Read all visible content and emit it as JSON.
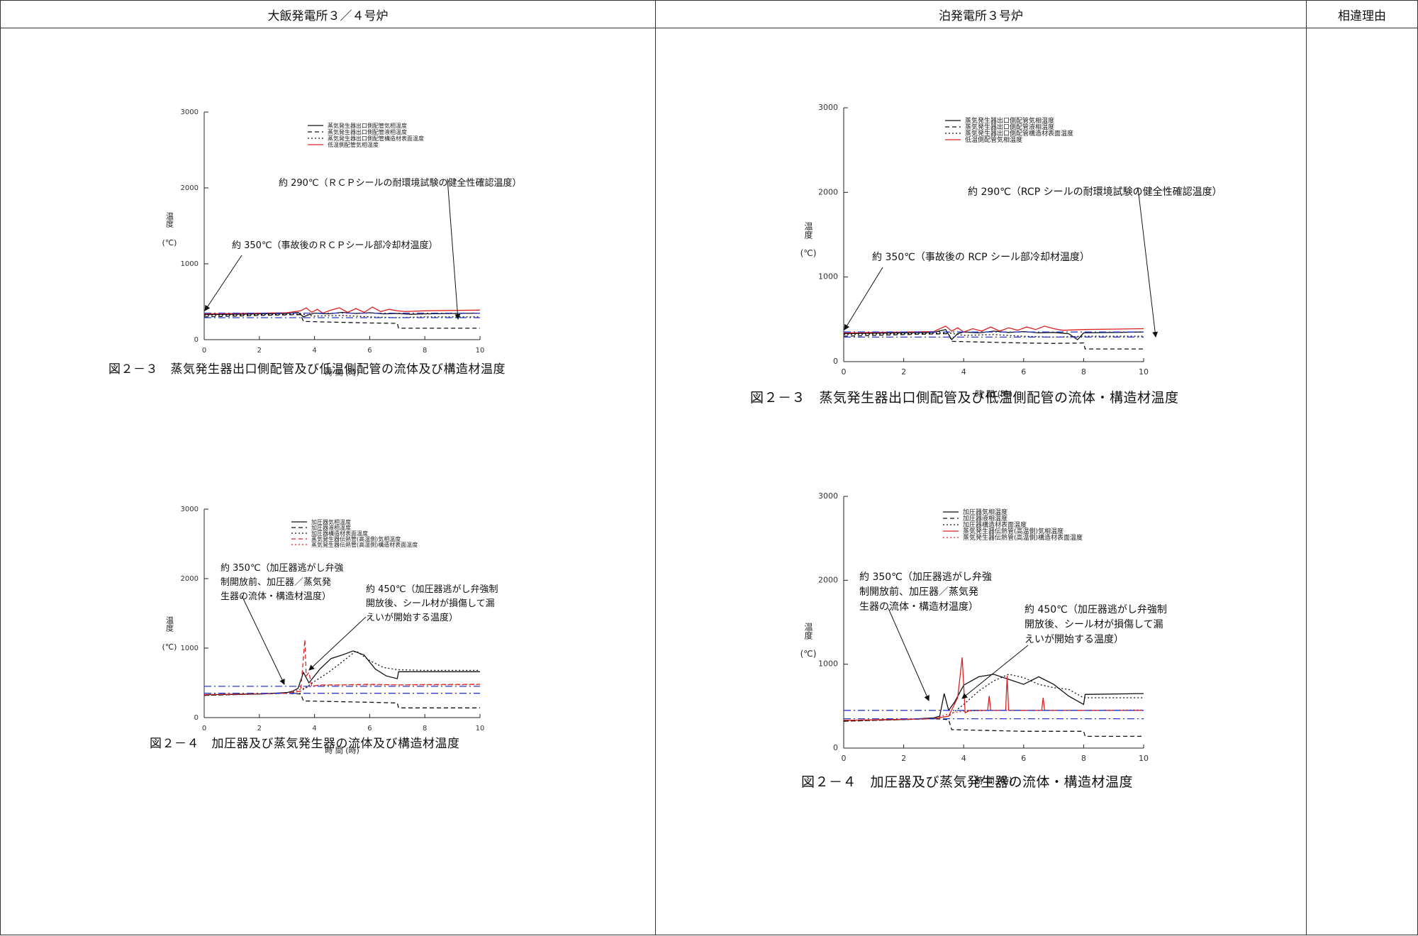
{
  "headers": {
    "left": "大飯発電所３／４号炉",
    "right": "泊発電所３号炉",
    "reason": "相違理由"
  },
  "figures": {
    "left_fig3": {
      "caption": "図２－３　蒸気発生器出口側配管及び低温側配管の流体及び構造材温度",
      "xlabel": "時 間 (時)",
      "ylabel": "温度",
      "yunit": "(℃)",
      "legend": [
        "蒸気発生器出口側配管気相温度",
        "蒸気発生器出口側配管液相温度",
        "蒸気発生器出口側配管構造材表面温度",
        "低温側配管気相温度"
      ],
      "ann1": "約 290℃（ＲＣＰシールの耐環境試験の健全性確認温度）",
      "ann2": "約 350℃（事故後のＲＣＰシール部冷却材温度）"
    },
    "left_fig4": {
      "caption": "図２－４　加圧器及び蒸気発生器の流体及び構造材温度",
      "xlabel": "時 間 (時)",
      "ylabel": "温度",
      "yunit": "(℃)",
      "legend": [
        "加圧器気相温度",
        "加圧器液相温度",
        "加圧器構造材表面温度",
        "蒸気発生器伝熱管(高温側)気相温度",
        "蒸気発生器伝熱管(高温側)構造材表面温度"
      ],
      "ann1": [
        "約 350℃（加圧器逃がし弁強",
        "制開放前、加圧器／蒸気発",
        "生器の流体・構造材温度）"
      ],
      "ann2": [
        "約 450℃（加圧器逃がし弁強制",
        "開放後、シール材が損傷して漏",
        "えいが開始する温度）"
      ]
    },
    "right_fig3": {
      "caption": "図２－３　蒸気発生器出口側配管及び低温側配管の流体・構造材温度",
      "xlabel": "時 間 (時)",
      "ylabel": "温度",
      "yunit": "(℃)",
      "legend": [
        "蒸気発生器出口側配管気相温度",
        "蒸気発生器出口側配管液相温度",
        "蒸気発生器出口側配管構造材表面温度",
        "低温側配管気相温度"
      ],
      "ann1": "約 290℃（RCP シールの耐環境試験の健全性確認温度）",
      "ann2": "約 350℃（事故後の RCP シール部冷却材温度）"
    },
    "right_fig4": {
      "caption": "図２－４　加圧器及び蒸気発生器の流体・構造材温度",
      "xlabel": "時 間 (時)",
      "ylabel": "温度",
      "yunit": "(℃)",
      "legend": [
        "加圧器気相温度",
        "加圧器液相温度",
        "加圧器構造材表面温度",
        "蒸気発生器伝熱管(高温側)気相温度",
        "蒸気発生器伝熱管(高温側)構造材表面温度"
      ],
      "ann1": [
        "約 350℃（加圧器逃がし弁強",
        "制開放前、加圧器／蒸気発",
        "生器の流体・構造材温度）"
      ],
      "ann2": [
        "約 450℃（加圧器逃がし弁強制",
        "開放後、シール材が損傷して漏",
        "えいが開始する温度）"
      ]
    }
  },
  "chart_data": [
    {
      "id": "left_fig3",
      "type": "line",
      "xlim": [
        0,
        10
      ],
      "ylim": [
        0,
        3000
      ],
      "xticks": [
        0,
        2,
        4,
        6,
        8,
        10
      ],
      "yticks": [
        0,
        1000,
        2000,
        3000
      ],
      "series": [
        {
          "name": "蒸気発生器出口側配管気相温度",
          "style": "solid",
          "color": "#111111",
          "x": [
            0,
            1,
            2,
            3,
            3.4,
            3.6,
            3.8,
            4,
            4.5,
            5,
            5.5,
            6,
            6.5,
            7,
            7.5,
            8,
            9,
            10
          ],
          "y": [
            330,
            335,
            340,
            345,
            360,
            300,
            330,
            350,
            340,
            360,
            345,
            355,
            340,
            345,
            335,
            340,
            345,
            350
          ]
        },
        {
          "name": "蒸気発生器出口側配管液相温度",
          "style": "dashed",
          "color": "#111111",
          "x": [
            0,
            2,
            3.5,
            3.6,
            6,
            7,
            7.05,
            10
          ],
          "y": [
            300,
            320,
            330,
            240,
            220,
            215,
            150,
            150
          ]
        },
        {
          "name": "蒸気発生器出口側配管構造材表面温度",
          "style": "dotted",
          "color": "#111111",
          "x": [
            0,
            2,
            3.5,
            4,
            5,
            6,
            7,
            8,
            10
          ],
          "y": [
            320,
            330,
            340,
            310,
            320,
            300,
            290,
            300,
            300
          ]
        },
        {
          "name": "低温側配管気相温度",
          "style": "solid",
          "color": "#e02020",
          "x": [
            0,
            1,
            2,
            3,
            3.5,
            3.7,
            3.9,
            4.1,
            4.3,
            4.6,
            4.9,
            5.2,
            5.5,
            5.8,
            6.1,
            6.4,
            6.7,
            7,
            7.3,
            8,
            9,
            10
          ],
          "y": [
            340,
            345,
            350,
            355,
            380,
            420,
            360,
            400,
            350,
            390,
            420,
            360,
            410,
            360,
            430,
            370,
            400,
            380,
            370,
            380,
            385,
            390
          ]
        },
        {
          "name": "",
          "style": "dashdot",
          "color": "#2a3bd0",
          "x": [
            0,
            10
          ],
          "y": [
            290,
            290
          ]
        },
        {
          "name": "",
          "style": "dashdot",
          "color": "#2a3bd0",
          "x": [
            0,
            10
          ],
          "y": [
            350,
            350
          ]
        }
      ]
    },
    {
      "id": "left_fig4",
      "type": "line",
      "xlim": [
        0,
        10
      ],
      "ylim": [
        0,
        3000
      ],
      "xticks": [
        0,
        2,
        4,
        6,
        8,
        10
      ],
      "yticks": [
        0,
        1000,
        2000,
        3000
      ],
      "series": [
        {
          "name": "加圧器気相温度",
          "style": "solid",
          "color": "#111111",
          "x": [
            0,
            2,
            3,
            3.2,
            3.4,
            3.6,
            3.8,
            4.2,
            4.6,
            5,
            5.4,
            5.8,
            6.2,
            6.6,
            7,
            7.05,
            10
          ],
          "y": [
            330,
            340,
            360,
            380,
            420,
            650,
            500,
            700,
            850,
            900,
            960,
            900,
            700,
            600,
            560,
            660,
            660
          ]
        },
        {
          "name": "加圧器液相温度",
          "style": "dashed",
          "color": "#111111",
          "x": [
            0,
            3,
            3.5,
            3.6,
            6,
            7,
            7.05,
            10
          ],
          "y": [
            320,
            350,
            340,
            240,
            220,
            210,
            140,
            140
          ]
        },
        {
          "name": "加圧器構造材表面温度",
          "style": "dotted",
          "color": "#111111",
          "x": [
            0,
            3,
            3.5,
            4,
            4.5,
            5,
            5.5,
            6,
            6.5,
            7,
            8,
            10
          ],
          "y": [
            320,
            350,
            380,
            520,
            650,
            800,
            960,
            820,
            720,
            690,
            680,
            680
          ]
        },
        {
          "name": "蒸気発生器伝熱管(高温側)気相温度",
          "style": "dashed",
          "color": "#e02020",
          "x": [
            0,
            3,
            3.5,
            3.65,
            3.7,
            3.8,
            3.9,
            4.2,
            5,
            6,
            7,
            8,
            10
          ],
          "y": [
            330,
            350,
            380,
            1120,
            600,
            650,
            450,
            470,
            470,
            480,
            470,
            475,
            480
          ]
        },
        {
          "name": "蒸気発生器伝熱管(高温側)構造材表面温度",
          "style": "dotted",
          "color": "#e02020",
          "x": [
            0,
            3,
            3.6,
            4,
            5,
            6,
            7,
            8,
            10
          ],
          "y": [
            330,
            350,
            420,
            460,
            470,
            470,
            470,
            470,
            475
          ]
        },
        {
          "name": "",
          "style": "dashdot",
          "color": "#2a3bd0",
          "x": [
            0,
            10
          ],
          "y": [
            450,
            450
          ]
        },
        {
          "name": "",
          "style": "dashdot",
          "color": "#2a3bd0",
          "x": [
            0,
            10
          ],
          "y": [
            350,
            350
          ]
        }
      ]
    },
    {
      "id": "right_fig3",
      "type": "line",
      "xlim": [
        0,
        10
      ],
      "ylim": [
        0,
        3000
      ],
      "xticks": [
        0,
        2,
        4,
        6,
        8,
        10
      ],
      "yticks": [
        0,
        1000,
        2000,
        3000
      ],
      "series": [
        {
          "name": "蒸気発生器出口側配管気相温度",
          "style": "solid",
          "color": "#111111",
          "x": [
            0,
            1,
            2,
            3,
            3.4,
            3.6,
            3.8,
            4,
            4.5,
            5,
            5.5,
            6,
            6.5,
            7,
            7.5,
            7.8,
            8,
            9,
            10
          ],
          "y": [
            330,
            335,
            340,
            345,
            380,
            260,
            330,
            350,
            340,
            360,
            345,
            355,
            340,
            345,
            330,
            260,
            340,
            345,
            350
          ]
        },
        {
          "name": "蒸気発生器出口側配管液相温度",
          "style": "dashed",
          "color": "#111111",
          "x": [
            0,
            2,
            3.5,
            3.6,
            6,
            7,
            8,
            8.05,
            10
          ],
          "y": [
            300,
            320,
            330,
            240,
            220,
            215,
            220,
            150,
            150
          ]
        },
        {
          "name": "蒸気発生器出口側配管構造材表面温度",
          "style": "dotted",
          "color": "#111111",
          "x": [
            0,
            2,
            3.5,
            4,
            5,
            6,
            7,
            8,
            10
          ],
          "y": [
            320,
            330,
            340,
            310,
            320,
            300,
            290,
            300,
            300
          ]
        },
        {
          "name": "低温側配管気相温度",
          "style": "solid",
          "color": "#e02020",
          "x": [
            0,
            1,
            2,
            3,
            3.4,
            3.6,
            3.8,
            4,
            4.3,
            4.6,
            4.9,
            5.2,
            5.5,
            5.8,
            6.1,
            6.4,
            6.7,
            7,
            7.3,
            8,
            9,
            10
          ],
          "y": [
            340,
            345,
            350,
            355,
            420,
            360,
            400,
            350,
            390,
            360,
            410,
            360,
            400,
            370,
            410,
            380,
            420,
            390,
            370,
            380,
            385,
            390
          ]
        },
        {
          "name": "",
          "style": "dashdot",
          "color": "#2a3bd0",
          "x": [
            0,
            10
          ],
          "y": [
            290,
            290
          ]
        },
        {
          "name": "",
          "style": "dashdot",
          "color": "#2a3bd0",
          "x": [
            0,
            10
          ],
          "y": [
            350,
            350
          ]
        }
      ]
    },
    {
      "id": "right_fig4",
      "type": "line",
      "xlim": [
        0,
        10
      ],
      "ylim": [
        0,
        3000
      ],
      "xticks": [
        0,
        2,
        4,
        6,
        8,
        10
      ],
      "yticks": [
        0,
        1000,
        2000,
        3000
      ],
      "series": [
        {
          "name": "加圧器気相温度",
          "style": "solid",
          "color": "#111111",
          "x": [
            0,
            2,
            3,
            3.2,
            3.35,
            3.5,
            3.7,
            4,
            4.5,
            5,
            5.5,
            6,
            6.5,
            7,
            7.5,
            8,
            8.05,
            10
          ],
          "y": [
            330,
            340,
            360,
            380,
            650,
            450,
            550,
            750,
            850,
            880,
            820,
            760,
            850,
            760,
            620,
            520,
            640,
            650
          ]
        },
        {
          "name": "加圧器液相温度",
          "style": "dashed",
          "color": "#111111",
          "x": [
            0,
            3,
            3.5,
            3.6,
            6,
            8,
            8.05,
            10
          ],
          "y": [
            320,
            350,
            340,
            220,
            200,
            200,
            140,
            140
          ]
        },
        {
          "name": "加圧器構造材表面温度",
          "style": "dotted",
          "color": "#111111",
          "x": [
            0,
            3,
            3.5,
            4,
            4.5,
            5,
            5.5,
            6,
            6.5,
            7,
            7.5,
            8,
            10
          ],
          "y": [
            320,
            350,
            380,
            520,
            680,
            800,
            880,
            840,
            760,
            720,
            700,
            600,
            600
          ]
        },
        {
          "name": "蒸気発生器伝熱管(高温側)気相温度",
          "style": "solid",
          "color": "#e02020",
          "x": [
            0,
            3,
            3.5,
            3.8,
            3.95,
            4.05,
            4.2,
            4.8,
            4.85,
            4.9,
            5.4,
            5.45,
            5.5,
            6.6,
            6.65,
            6.7,
            10
          ],
          "y": [
            330,
            350,
            380,
            600,
            1080,
            420,
            450,
            450,
            620,
            450,
            450,
            860,
            450,
            450,
            600,
            450,
            450
          ]
        },
        {
          "name": "蒸気発生器伝熱管(高温側)構造材表面温度",
          "style": "dotted",
          "color": "#e02020",
          "x": [
            0,
            3,
            3.6,
            4,
            5,
            6,
            7,
            8,
            10
          ],
          "y": [
            330,
            350,
            420,
            440,
            450,
            450,
            450,
            450,
            455
          ]
        },
        {
          "name": "",
          "style": "dashdot",
          "color": "#2a3bd0",
          "x": [
            0,
            10
          ],
          "y": [
            450,
            450
          ]
        },
        {
          "name": "",
          "style": "dashdot",
          "color": "#2a3bd0",
          "x": [
            0,
            10
          ],
          "y": [
            350,
            350
          ]
        }
      ]
    }
  ]
}
